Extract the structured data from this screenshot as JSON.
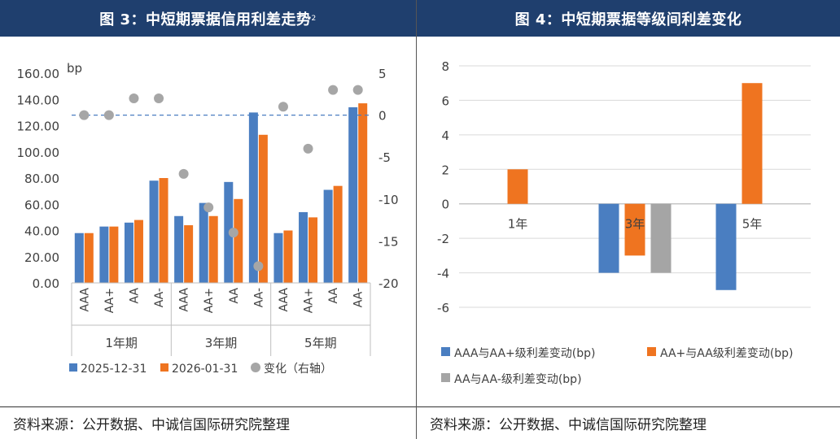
{
  "colors": {
    "header_bg": "#1f3f6e",
    "blue": "#4a7ec1",
    "orange": "#ef7420",
    "gray": "#a5a5a5",
    "dot": "#a6a6a6",
    "refline": "#4a7ec1"
  },
  "left": {
    "title": "图 3：中短期票据信用利差走势",
    "title_sup": "2",
    "source": "资料来源：公开数据、中诚信国际研究院整理",
    "chart_data": {
      "type": "bar",
      "unit_label": "bp",
      "groups": [
        "1年期",
        "3年期",
        "5年期"
      ],
      "categories": [
        "AAA",
        "AA+",
        "AA",
        "AA-",
        "AAA",
        "AA+",
        "AA",
        "AA-",
        "AAA",
        "AA+",
        "AA",
        "AA-"
      ],
      "series": [
        {
          "name": "2025-12-31",
          "values": [
            38,
            43,
            46,
            78,
            51,
            61,
            77,
            130,
            38,
            54,
            71,
            134
          ]
        },
        {
          "name": "2026-01-31",
          "values": [
            38,
            43,
            48,
            80,
            44,
            51,
            64,
            113,
            40,
            50,
            74,
            137
          ]
        }
      ],
      "change_series": {
        "name": "变化（右轴）",
        "values": [
          0,
          0,
          2,
          2,
          -7,
          -11,
          -14,
          -18,
          1,
          -4,
          3,
          3
        ]
      },
      "ylim": [
        0,
        160
      ],
      "y_ticks": [
        "0.00",
        "20.00",
        "40.00",
        "60.00",
        "80.00",
        "100.00",
        "120.00",
        "140.00",
        "160.00"
      ],
      "y2lim": [
        -20,
        5
      ],
      "y2_ticks": [
        "-20",
        "-15",
        "-10",
        "-5",
        "0",
        "5"
      ],
      "legend": [
        "2025-12-31",
        "2026-01-31",
        "变化（右轴）"
      ]
    }
  },
  "right": {
    "title": "图 4：中短期票据等级间利差变化",
    "source": "资料来源：公开数据、中诚信国际研究院整理",
    "chart_data": {
      "type": "bar",
      "categories": [
        "1年",
        "3年",
        "5年"
      ],
      "series": [
        {
          "name": "AAA与AA+级利差变动(bp)",
          "values": [
            0,
            -4,
            -5
          ]
        },
        {
          "name": "AA+与AA级利差变动(bp)",
          "values": [
            2,
            -3,
            7
          ]
        },
        {
          "name": "AA与AA-级利差变动(bp)",
          "values": [
            0,
            -4,
            0
          ]
        }
      ],
      "ylim": [
        -6,
        8
      ],
      "y_ticks": [
        "-6",
        "-4",
        "-2",
        "0",
        "2",
        "4",
        "6",
        "8"
      ]
    }
  }
}
